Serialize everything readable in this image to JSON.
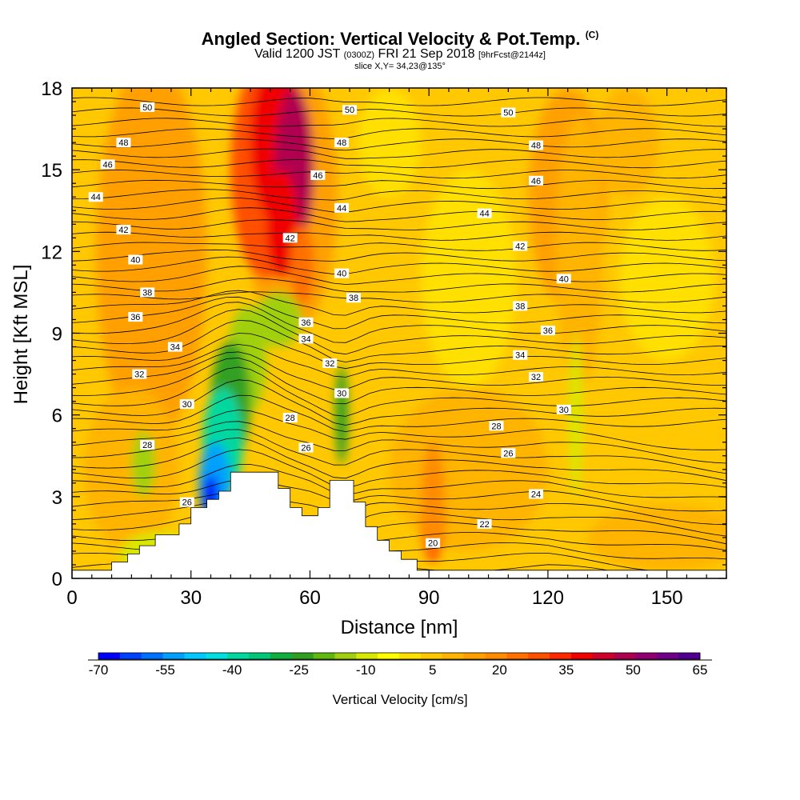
{
  "header": {
    "title_main": "Angled Section: Vertical Velocity & Pot.Temp.",
    "title_mark": "(C)",
    "valid_prefix": "Valid 1200 JST",
    "valid_utc": "(0300Z)",
    "valid_date": "FRI 21 Sep 2018",
    "valid_fcst": "[9hrFcst@2144z]",
    "slice": "slice X,Y= 34,23@135°"
  },
  "chart_data": {
    "type": "heatmap",
    "xlabel": "Distance [nm]",
    "ylabel": "Height [Kft MSL]",
    "xlim": [
      0,
      165
    ],
    "ylim": [
      0,
      18
    ],
    "x_ticks": [
      0,
      30,
      60,
      90,
      120,
      150
    ],
    "y_ticks": [
      0,
      3,
      6,
      9,
      12,
      15,
      18
    ],
    "background_value": 5,
    "colorbar": {
      "title": "Vertical Velocity [cm/s]",
      "min": -70,
      "max": 65,
      "step": 5,
      "tick_labels": [
        -70,
        -55,
        -40,
        -25,
        -10,
        5,
        20,
        35,
        50,
        65
      ],
      "colors": [
        "#0000ff",
        "#0040ff",
        "#0070ff",
        "#00a0ff",
        "#00c8ff",
        "#00e0e0",
        "#00d8a0",
        "#00c878",
        "#10b040",
        "#30a020",
        "#60b810",
        "#a0d010",
        "#d8e800",
        "#ffff00",
        "#ffe000",
        "#ffc800",
        "#ffb400",
        "#ffa000",
        "#ff8c00",
        "#ff7000",
        "#ff5000",
        "#ff2800",
        "#f00000",
        "#d00028",
        "#b00050",
        "#900070",
        "#700088",
        "#500090"
      ]
    },
    "terrain": [
      [
        0,
        0.3
      ],
      [
        10,
        0.3
      ],
      [
        10,
        0.6
      ],
      [
        14,
        0.6
      ],
      [
        14,
        0.9
      ],
      [
        17,
        0.9
      ],
      [
        17,
        1.2
      ],
      [
        21,
        1.2
      ],
      [
        21,
        1.6
      ],
      [
        27,
        1.6
      ],
      [
        27,
        2.0
      ],
      [
        30,
        2.0
      ],
      [
        30,
        2.6
      ],
      [
        34,
        2.6
      ],
      [
        34,
        2.9
      ],
      [
        37,
        2.9
      ],
      [
        37,
        3.2
      ],
      [
        40,
        3.2
      ],
      [
        40,
        3.9
      ],
      [
        52,
        3.9
      ],
      [
        52,
        3.3
      ],
      [
        55,
        3.3
      ],
      [
        55,
        2.6
      ],
      [
        58,
        2.6
      ],
      [
        58,
        2.3
      ],
      [
        62,
        2.3
      ],
      [
        62,
        2.6
      ],
      [
        65,
        2.6
      ],
      [
        65,
        3.6
      ],
      [
        71,
        3.6
      ],
      [
        71,
        2.8
      ],
      [
        74,
        2.8
      ],
      [
        74,
        1.9
      ],
      [
        77,
        1.9
      ],
      [
        77,
        1.4
      ],
      [
        80,
        1.4
      ],
      [
        80,
        1.0
      ],
      [
        83,
        1.0
      ],
      [
        83,
        0.7
      ],
      [
        87,
        0.7
      ],
      [
        87,
        0.3
      ],
      [
        165,
        0.3
      ]
    ],
    "features": [
      {
        "name": "updraft-upper",
        "x": [
          47,
          60,
          45,
          55
        ],
        "y": [
          18,
          12,
          18,
          10
        ],
        "peak": 65
      },
      {
        "name": "downdraft-slant",
        "x": [
          33,
          48
        ],
        "y": [
          2.5,
          8.5
        ],
        "peak": -70
      },
      {
        "name": "downdraft-narrow",
        "x": [
          68
        ],
        "y": [
          3.5,
          7.5
        ],
        "peak": -25
      },
      {
        "name": "updraft-lower",
        "x": [
          91
        ],
        "y": [
          1,
          5
        ],
        "peak": 40
      },
      {
        "name": "downdraft-right",
        "x": [
          127
        ],
        "y": [
          3.5,
          9
        ],
        "peak": -15
      }
    ],
    "isentrope_labels": [
      {
        "value": "50",
        "x": 19,
        "y": 17.3
      },
      {
        "value": "48",
        "x": 13,
        "y": 16.0
      },
      {
        "value": "46",
        "x": 9,
        "y": 15.2
      },
      {
        "value": "44",
        "x": 6,
        "y": 14.0
      },
      {
        "value": "42",
        "x": 13,
        "y": 12.8
      },
      {
        "value": "40",
        "x": 16,
        "y": 11.7
      },
      {
        "value": "38",
        "x": 19,
        "y": 10.5
      },
      {
        "value": "36",
        "x": 16,
        "y": 9.6
      },
      {
        "value": "34",
        "x": 26,
        "y": 8.5
      },
      {
        "value": "32",
        "x": 17,
        "y": 7.5
      },
      {
        "value": "30",
        "x": 29,
        "y": 6.4
      },
      {
        "value": "28",
        "x": 19,
        "y": 4.9
      },
      {
        "value": "26",
        "x": 29,
        "y": 2.8
      },
      {
        "value": "50",
        "x": 70,
        "y": 17.2
      },
      {
        "value": "48",
        "x": 68,
        "y": 16.0
      },
      {
        "value": "46",
        "x": 62,
        "y": 14.8
      },
      {
        "value": "44",
        "x": 68,
        "y": 13.6
      },
      {
        "value": "42",
        "x": 55,
        "y": 12.5
      },
      {
        "value": "40",
        "x": 68,
        "y": 11.2
      },
      {
        "value": "38",
        "x": 71,
        "y": 10.3
      },
      {
        "value": "36",
        "x": 59,
        "y": 9.4
      },
      {
        "value": "34",
        "x": 59,
        "y": 8.8
      },
      {
        "value": "32",
        "x": 65,
        "y": 7.9
      },
      {
        "value": "30",
        "x": 68,
        "y": 6.8
      },
      {
        "value": "28",
        "x": 55,
        "y": 5.9
      },
      {
        "value": "26",
        "x": 59,
        "y": 4.8
      },
      {
        "value": "50",
        "x": 110,
        "y": 17.1
      },
      {
        "value": "48",
        "x": 117,
        "y": 15.9
      },
      {
        "value": "46",
        "x": 117,
        "y": 14.6
      },
      {
        "value": "44",
        "x": 104,
        "y": 13.4
      },
      {
        "value": "42",
        "x": 113,
        "y": 12.2
      },
      {
        "value": "40",
        "x": 124,
        "y": 11.0
      },
      {
        "value": "38",
        "x": 113,
        "y": 10.0
      },
      {
        "value": "36",
        "x": 120,
        "y": 9.1
      },
      {
        "value": "34",
        "x": 113,
        "y": 8.2
      },
      {
        "value": "32",
        "x": 117,
        "y": 7.4
      },
      {
        "value": "30",
        "x": 124,
        "y": 6.2
      },
      {
        "value": "28",
        "x": 107,
        "y": 5.6
      },
      {
        "value": "26",
        "x": 110,
        "y": 4.6
      },
      {
        "value": "24",
        "x": 117,
        "y": 3.1
      },
      {
        "value": "22",
        "x": 104,
        "y": 2.0
      },
      {
        "value": "20",
        "x": 91,
        "y": 1.3
      }
    ]
  }
}
